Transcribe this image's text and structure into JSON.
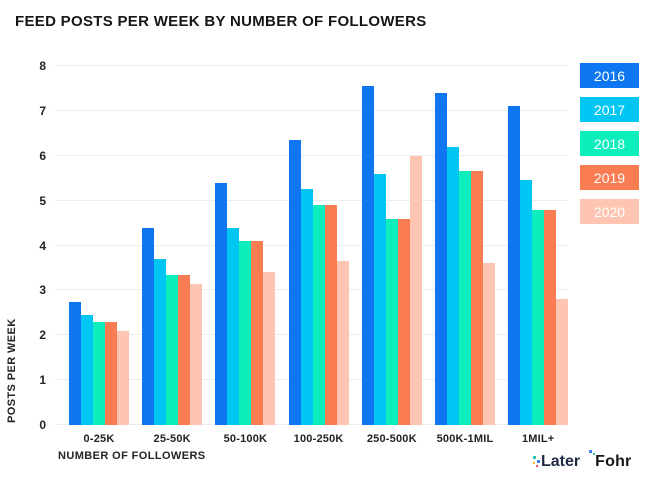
{
  "title": "FEED POSTS PER WEEK BY NUMBER OF FOLLOWERS",
  "chart_data": {
    "type": "bar",
    "categories": [
      "0-25K",
      "25-50K",
      "50-100K",
      "100-250K",
      "250-500K",
      "500K-1MIL",
      "1MIL+"
    ],
    "series": [
      {
        "name": "2016",
        "color": "#0e76f1",
        "values": [
          2.75,
          4.4,
          5.4,
          6.35,
          7.55,
          7.4,
          7.1
        ]
      },
      {
        "name": "2017",
        "color": "#00c6f4",
        "values": [
          2.45,
          3.7,
          4.4,
          5.25,
          5.6,
          6.2,
          5.45
        ]
      },
      {
        "name": "2018",
        "color": "#0deebd",
        "values": [
          2.3,
          3.35,
          4.1,
          4.9,
          4.6,
          5.65,
          4.8
        ]
      },
      {
        "name": "2019",
        "color": "#f97c52",
        "values": [
          2.3,
          3.35,
          4.1,
          4.9,
          4.6,
          5.65,
          4.8
        ]
      },
      {
        "name": "2020",
        "color": "#fdc5b2",
        "values": [
          2.1,
          3.15,
          3.4,
          3.65,
          6.0,
          3.6,
          2.8
        ]
      }
    ],
    "xlabel": "NUMBER OF FOLLOWERS",
    "ylabel": "POSTS PER WEEK",
    "ylim": [
      0,
      8
    ],
    "yticks": [
      0,
      1,
      2,
      3,
      4,
      5,
      6,
      7,
      8
    ],
    "grid": true,
    "legend_position": "right"
  },
  "footer": {
    "later_label": "Later",
    "fohr_label": "Fohr",
    "later_dot_colors": [
      "#2ec4a9",
      "#3f7df6",
      "#f5b32e",
      "#ef476f",
      "#3f7df6",
      "#2ec4a9"
    ]
  }
}
